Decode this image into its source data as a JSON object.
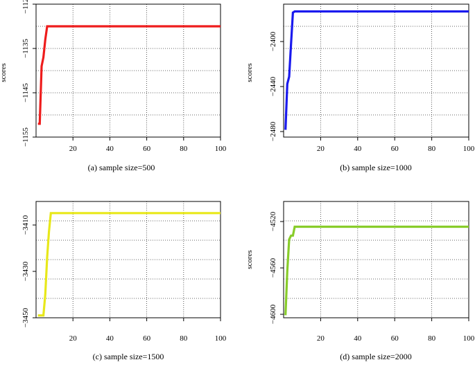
{
  "chart_data": [
    {
      "type": "line",
      "ylabel": "scores",
      "caption": "(a) sample size=500",
      "xticks": [
        "20",
        "40",
        "60",
        "80",
        "100"
      ],
      "yticks": [
        "−1155",
        "−1145",
        "−1135",
        "−1125"
      ],
      "xlim": [
        0,
        100
      ],
      "ylim": [
        -1155,
        -1125
      ],
      "grid": true,
      "color": "#ee1c1c",
      "series": [
        {
          "x": [
            1,
            2,
            3,
            4,
            5,
            6,
            100
          ],
          "y": [
            -1152,
            -1152,
            -1139,
            -1137,
            -1133,
            -1130,
            -1130
          ]
        }
      ]
    },
    {
      "type": "line",
      "ylabel": "scores",
      "caption": "(b) sample size=1000",
      "xticks": [
        "20",
        "40",
        "60",
        "80",
        "100"
      ],
      "yticks": [
        "−2480",
        "−2440",
        "−2400"
      ],
      "xlim": [
        0,
        100
      ],
      "ylim": [
        -2480,
        -2370
      ],
      "grid": true,
      "color": "#1a1aee",
      "series": [
        {
          "x": [
            1,
            2,
            3,
            4,
            5,
            6,
            100
          ],
          "y": [
            -2474,
            -2436,
            -2430,
            -2403,
            -2377,
            -2376,
            -2376
          ]
        }
      ]
    },
    {
      "type": "line",
      "ylabel": "",
      "caption": "(c) sample size=1500",
      "xticks": [
        "20",
        "40",
        "60",
        "80",
        "100"
      ],
      "yticks": [
        "−3450",
        "−3430",
        "−3410"
      ],
      "xlim": [
        0,
        100
      ],
      "ylim": [
        -3450,
        -3400
      ],
      "grid": true,
      "color": "#e8e81a",
      "series": [
        {
          "x": [
            1,
            4,
            5,
            6,
            7,
            8,
            100
          ],
          "y": [
            -3449,
            -3449,
            -3440,
            -3424,
            -3413,
            -3405,
            -3405
          ]
        }
      ]
    },
    {
      "type": "line",
      "ylabel": "scores",
      "caption": "(d) sample size=2000",
      "xticks": [
        "20",
        "40",
        "60",
        "80",
        "100"
      ],
      "yticks": [
        "−4600",
        "−4560",
        "−4520"
      ],
      "xlim": [
        0,
        100
      ],
      "ylim": [
        -4607,
        -4515
      ],
      "grid": true,
      "color": "#88cc2a",
      "series": [
        {
          "x": [
            1,
            2,
            3,
            4,
            5,
            6,
            100
          ],
          "y": [
            -4605,
            -4570,
            -4545,
            -4542,
            -4542,
            -4535,
            -4535
          ]
        }
      ]
    }
  ]
}
